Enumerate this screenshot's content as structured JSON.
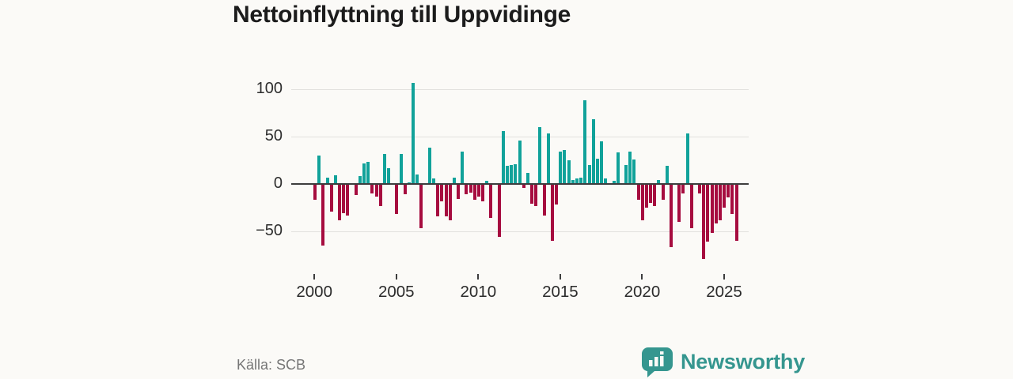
{
  "title": "Nettoinflyttning till Uppvidinge",
  "source": {
    "label": "Källa: SCB"
  },
  "branding": {
    "name": "Newsworthy",
    "icon": "bar-chart-speech-bubble-icon",
    "color": "#35968f"
  },
  "colors": {
    "background": "#fbfaf7",
    "positive_bar": "#11a29a",
    "negative_bar": "#a60c3f",
    "zero_axis": "#3d3d3d",
    "gridline": "#e2e1de",
    "text_dark": "#2b2b2b",
    "text_muted": "#767676"
  },
  "chart_data": {
    "type": "bar",
    "title": "Nettoinflyttning till Uppvidinge",
    "frequency": "quarterly",
    "start_period": "2000 Q1",
    "end_period": "2025 Q4",
    "xlabel": "",
    "ylabel": "",
    "ylim": [
      -90,
      115
    ],
    "yticks": [
      100,
      50,
      0,
      -50
    ],
    "ytick_labels": [
      "100",
      "50",
      "0",
      "−50"
    ],
    "xticks": [
      2000,
      2005,
      2010,
      2015,
      2020,
      2025
    ],
    "grid": true,
    "legend": false,
    "values_by_year": [
      {
        "year": 2000,
        "q": [
          -17,
          30,
          -65,
          7
        ]
      },
      {
        "year": 2001,
        "q": [
          -29,
          9,
          -38,
          -31
        ]
      },
      {
        "year": 2002,
        "q": [
          -33,
          0,
          -12,
          8
        ]
      },
      {
        "year": 2003,
        "q": [
          22,
          23,
          -10,
          -13
        ]
      },
      {
        "year": 2004,
        "q": [
          -23,
          32,
          17,
          0
        ]
      },
      {
        "year": 2005,
        "q": [
          -32,
          32,
          -11,
          2
        ]
      },
      {
        "year": 2006,
        "q": [
          107,
          10,
          -47,
          0
        ]
      },
      {
        "year": 2007,
        "q": [
          38,
          6,
          -34,
          -18
        ]
      },
      {
        "year": 2008,
        "q": [
          -34,
          -38,
          7,
          -16
        ]
      },
      {
        "year": 2009,
        "q": [
          34,
          -11,
          -9,
          -17
        ]
      },
      {
        "year": 2010,
        "q": [
          -13,
          -18,
          3,
          -36
        ]
      },
      {
        "year": 2011,
        "q": [
          0,
          -56,
          56,
          19
        ]
      },
      {
        "year": 2012,
        "q": [
          20,
          21,
          46,
          -4
        ]
      },
      {
        "year": 2013,
        "q": [
          12,
          -21,
          -23,
          60
        ]
      },
      {
        "year": 2014,
        "q": [
          -33,
          53,
          -60,
          -22
        ]
      },
      {
        "year": 2015,
        "q": [
          34,
          36,
          25,
          4
        ]
      },
      {
        "year": 2016,
        "q": [
          6,
          7,
          88,
          20
        ]
      },
      {
        "year": 2017,
        "q": [
          68,
          27,
          45,
          6
        ]
      },
      {
        "year": 2018,
        "q": [
          0,
          3,
          33,
          0
        ]
      },
      {
        "year": 2019,
        "q": [
          20,
          34,
          26,
          -17
        ]
      },
      {
        "year": 2020,
        "q": [
          -38,
          -25,
          -20,
          -23
        ]
      },
      {
        "year": 2021,
        "q": [
          4,
          -17,
          19,
          -67
        ]
      },
      {
        "year": 2022,
        "q": [
          0,
          -40,
          -10,
          53
        ]
      },
      {
        "year": 2023,
        "q": [
          -47,
          0,
          -10,
          -79
        ]
      },
      {
        "year": 2024,
        "q": [
          -61,
          -52,
          -42,
          -38
        ]
      },
      {
        "year": 2025,
        "q": [
          -25,
          -14,
          -32,
          -60
        ]
      }
    ]
  }
}
